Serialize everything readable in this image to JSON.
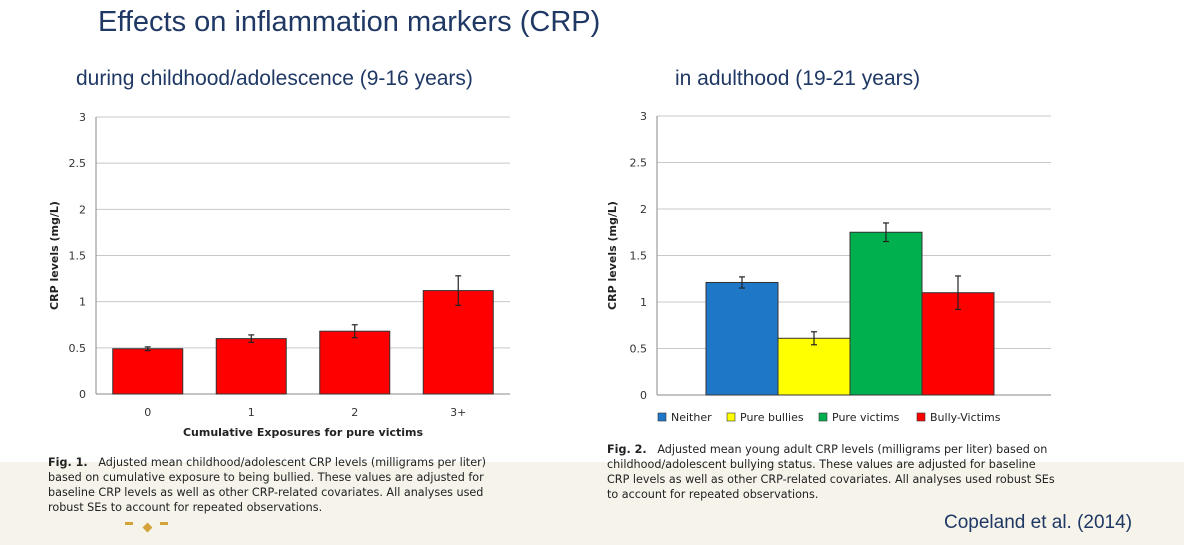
{
  "slide_title": "Effects on inflammation markers (CRP)",
  "subtitles": {
    "left": "during childhood/adolescence (9-16 years)",
    "right": "in adulthood (19-21 years)"
  },
  "citation": "Copeland et al. (2014)",
  "captions": {
    "fig1_label": "Fig. 1.",
    "fig1_text": "Adjusted mean childhood/adolescent CRP levels (milligrams per liter) based on cumulative exposure to being bullied. These values are adjusted for baseline CRP levels as well as other CRP-related covariates. All analyses used robust SEs to account for repeated observations.",
    "fig2_label": "Fig. 2.",
    "fig2_text": "Adjusted mean young adult CRP levels (milligrams per liter) based on childhood/adolescent bullying status. These values are adjusted for baseline CRP levels as well as other CRP-related covariates. All analyses used robust SEs to account for repeated observations."
  },
  "colors": {
    "title": "#1f3864",
    "red": "#ff0000",
    "blue": "#1f77c8",
    "yellow": "#ffff00",
    "green": "#00b04f",
    "gold": "#d4a43a"
  },
  "chart_data": [
    {
      "type": "bar",
      "title": "during childhood/adolescence (9-16 years)",
      "xlabel": "Cumulative Exposures for pure victims",
      "ylabel": "CRP levels (mg/L)",
      "ylim": [
        0,
        3
      ],
      "yticks": [
        "0",
        "0.5",
        "1",
        "1.5",
        "2",
        "2.5",
        "3"
      ],
      "grid": true,
      "categories": [
        "0",
        "1",
        "2",
        "3+"
      ],
      "values": [
        0.49,
        0.6,
        0.68,
        1.12
      ],
      "errors": [
        0.02,
        0.04,
        0.07,
        0.16
      ],
      "colors": [
        "#ff0000",
        "#ff0000",
        "#ff0000",
        "#ff0000"
      ]
    },
    {
      "type": "bar",
      "title": "in adulthood (19-21 years)",
      "xlabel": "",
      "ylabel": "CRP levels (mg/L)",
      "ylim": [
        0,
        3
      ],
      "yticks": [
        "0",
        "0.5",
        "1",
        "1.5",
        "2",
        "2.5",
        "3"
      ],
      "grid": true,
      "categories": [
        "Neither",
        "Pure bullies",
        "Pure victims",
        "Bully-Victims"
      ],
      "values": [
        1.21,
        0.61,
        1.75,
        1.1
      ],
      "errors": [
        0.06,
        0.07,
        0.1,
        0.18
      ],
      "colors": [
        "#1f77c8",
        "#ffff00",
        "#00b04f",
        "#ff0000"
      ],
      "legend": [
        "Neither",
        "Pure bullies",
        "Pure victims",
        "Bully-Victims"
      ],
      "legend_position": "bottom"
    }
  ]
}
